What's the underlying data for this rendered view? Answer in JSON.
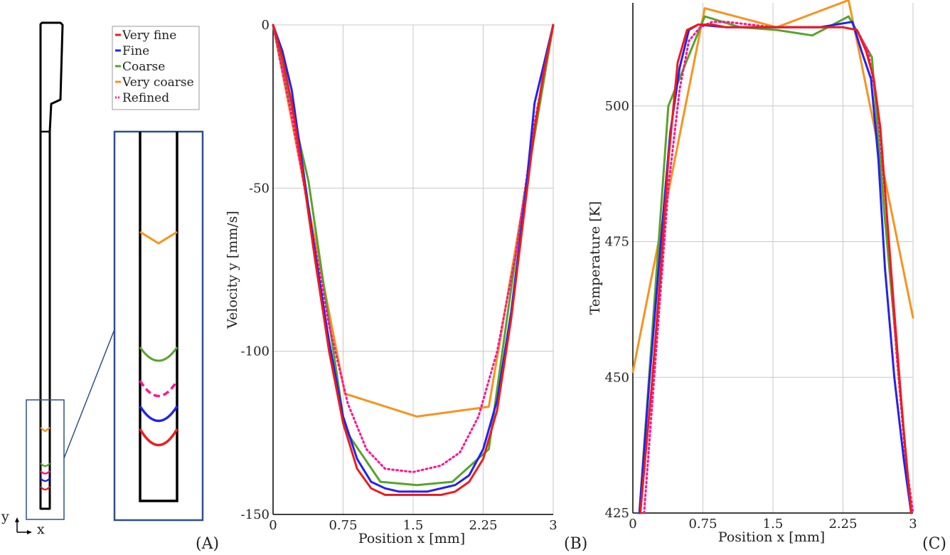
{
  "panel_labels": {
    "a": "(A)",
    "b": "(B)",
    "c": "(C)"
  },
  "axes_indicator": {
    "y": "y",
    "x": "x"
  },
  "series_styles": [
    {
      "name": "Very fine",
      "color": "#ee1c1c",
      "dash": "solid"
    },
    {
      "name": "Fine",
      "color": "#2222ee",
      "dash": "solid"
    },
    {
      "name": "Coarse",
      "color": "#55a52a",
      "dash": "solid"
    },
    {
      "name": "Very coarse",
      "color": "#f7931e",
      "dash": "solid"
    },
    {
      "name": "Refined",
      "color": "#ff1493",
      "dash": "dotted"
    }
  ],
  "chart_data": [
    {
      "type": "line",
      "title": "",
      "xlabel": "Position x [mm]",
      "ylabel": "Velocity y [mm/s]",
      "xlim": [
        0,
        3
      ],
      "ylim": [
        -150,
        0
      ],
      "xticks": [
        0,
        0.75,
        1.5,
        2.25,
        3
      ],
      "xtick_labels": [
        "0",
        "0.75",
        "1.5",
        "2.25",
        "3"
      ],
      "yticks": [
        0,
        -50,
        -100,
        -150
      ],
      "ytick_labels": [
        "0",
        "-50",
        "-100",
        "-150"
      ],
      "grid": true,
      "series": [
        {
          "name": "Very fine",
          "x": [
            0,
            0.1,
            0.2,
            0.3,
            0.45,
            0.6,
            0.75,
            0.9,
            1.05,
            1.2,
            1.35,
            1.5,
            1.65,
            1.8,
            1.95,
            2.1,
            2.25,
            2.4,
            2.55,
            2.7,
            2.8,
            2.9,
            3
          ],
          "y": [
            0,
            -10,
            -24,
            -42,
            -72,
            -100,
            -122,
            -136,
            -142,
            -144,
            -144,
            -144,
            -144,
            -144,
            -143,
            -140,
            -133,
            -118,
            -90,
            -55,
            -32,
            -14,
            0
          ]
        },
        {
          "name": "Fine",
          "x": [
            0,
            0.1,
            0.2,
            0.3,
            0.45,
            0.6,
            0.75,
            0.9,
            1.05,
            1.2,
            1.35,
            1.5,
            1.65,
            1.8,
            1.95,
            2.1,
            2.25,
            2.4,
            2.55,
            2.7,
            2.8,
            2.9,
            3
          ],
          "y": [
            0,
            -8,
            -20,
            -40,
            -70,
            -97,
            -120,
            -133,
            -140,
            -142,
            -143,
            -143,
            -143,
            -142,
            -141,
            -138,
            -130,
            -115,
            -88,
            -53,
            -24,
            -12,
            0
          ]
        },
        {
          "name": "Coarse",
          "x": [
            0,
            0.38,
            0.77,
            1.15,
            1.54,
            1.92,
            2.31,
            2.69,
            3
          ],
          "y": [
            0,
            -48,
            -124,
            -140,
            -141,
            -140,
            -130,
            -52,
            0
          ]
        },
        {
          "name": "Very coarse",
          "x": [
            0,
            0.77,
            1.54,
            2.31,
            3
          ],
          "y": [
            0,
            -113,
            -120,
            -117,
            0
          ]
        },
        {
          "name": "Refined",
          "x": [
            0,
            0.2,
            0.4,
            0.6,
            0.8,
            1.0,
            1.2,
            1.5,
            1.8,
            2.0,
            2.2,
            2.4,
            2.6,
            2.8,
            3
          ],
          "y": [
            0,
            -28,
            -60,
            -92,
            -116,
            -130,
            -136,
            -137,
            -135,
            -131,
            -120,
            -100,
            -70,
            -30,
            0
          ]
        }
      ],
      "legend": [
        "Very fine",
        "Fine",
        "Coarse",
        "Very coarse",
        "Refined"
      ],
      "legend_position": "top-left"
    },
    {
      "type": "line",
      "title": "",
      "xlabel": "Position x [mm]",
      "ylabel": "Temperature [K]",
      "xlim": [
        0,
        3
      ],
      "ylim": [
        425,
        519
      ],
      "xticks": [
        0,
        0.75,
        1.5,
        2.25,
        3
      ],
      "xtick_labels": [
        "0",
        "0.75",
        "1.5",
        "2.25",
        "3"
      ],
      "yticks": [
        425,
        450,
        475,
        500
      ],
      "ytick_labels": [
        "425",
        "450",
        "475",
        "500"
      ],
      "grid": true,
      "series": [
        {
          "name": "Very fine",
          "x": [
            0.08,
            0.2,
            0.3,
            0.38,
            0.48,
            0.58,
            0.7,
            0.85,
            1.0,
            1.5,
            2.0,
            2.25,
            2.4,
            2.5,
            2.58,
            2.65,
            2.72,
            2.8,
            2.9,
            2.98
          ],
          "y": [
            425,
            448,
            470,
            490,
            508,
            514,
            515,
            515,
            514.5,
            514.5,
            514.5,
            514.5,
            514,
            510,
            505,
            496,
            480,
            462,
            440,
            425
          ]
        },
        {
          "name": "Fine",
          "x": [
            0.07,
            0.18,
            0.3,
            0.4,
            0.5,
            0.6,
            0.7,
            1.0,
            1.5,
            2.0,
            2.35,
            2.45,
            2.55,
            2.63,
            2.7,
            2.8,
            2.9,
            2.98
          ],
          "y": [
            425,
            450,
            475,
            495,
            507,
            514,
            515,
            514.5,
            514.5,
            514.5,
            515.5,
            510,
            505,
            490,
            470,
            450,
            435,
            425
          ]
        },
        {
          "name": "Coarse",
          "x": [
            0.07,
            0.38,
            0.77,
            1.15,
            1.54,
            1.92,
            2.31,
            2.56,
            2.69,
            2.98
          ],
          "y": [
            425,
            500,
            516.5,
            514.5,
            514,
            513,
            516.5,
            509,
            481,
            425
          ]
        },
        {
          "name": "Very coarse",
          "x": [
            0,
            0.77,
            1.54,
            2.31,
            3
          ],
          "y": [
            451,
            518,
            514.5,
            519.5,
            461
          ]
        },
        {
          "name": "Refined",
          "x": [
            0.12,
            0.25,
            0.38,
            0.5,
            0.6,
            0.72,
            0.85,
            1.0,
            1.5,
            2.0,
            2.25,
            2.4,
            2.52,
            2.62,
            2.72,
            2.82,
            2.92,
            3
          ],
          "y": [
            425,
            455,
            485,
            503,
            512,
            514.5,
            515.5,
            515.5,
            514.5,
            514.5,
            514.5,
            514,
            510,
            500,
            480,
            455,
            435,
            425
          ]
        }
      ]
    }
  ]
}
